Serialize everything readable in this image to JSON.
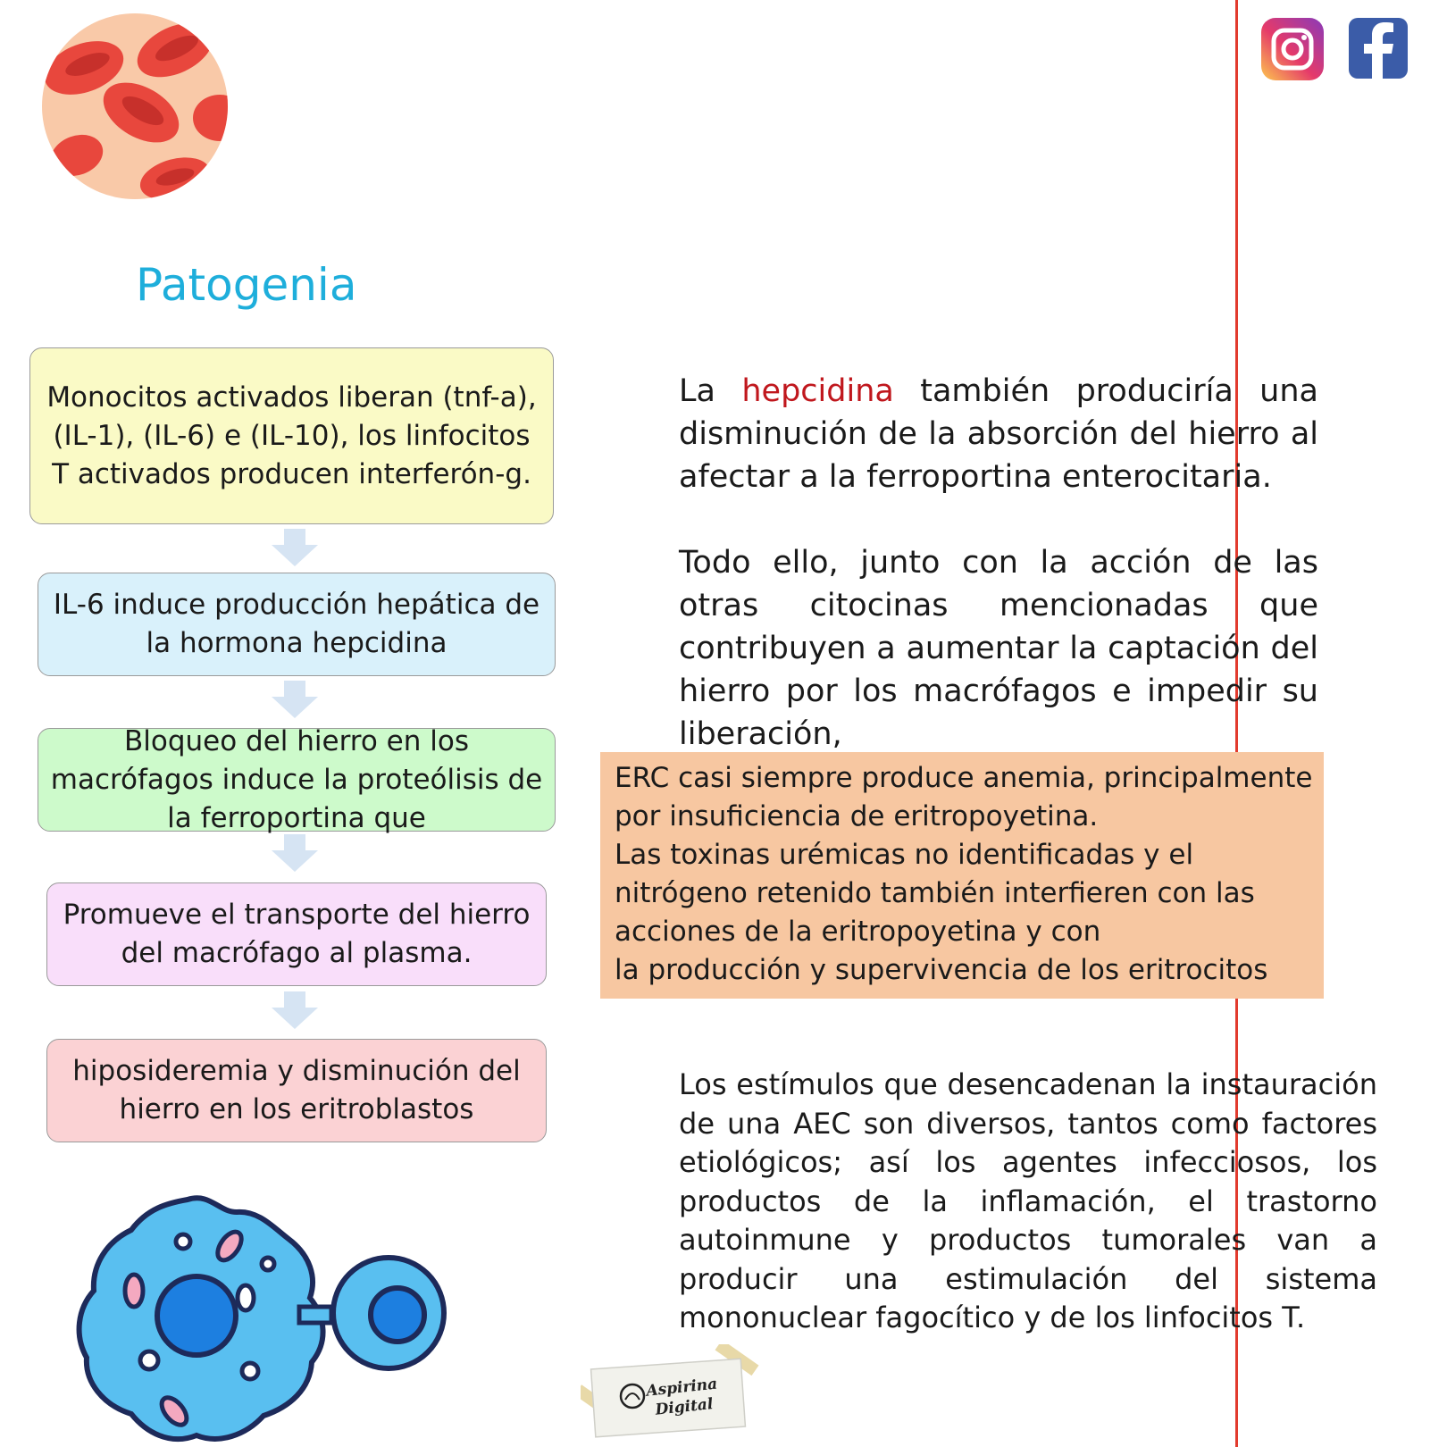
{
  "title": "Patogenia",
  "flow_boxes": [
    "Monocitos activados liberan (tnf-a), (IL-1), (IL-6) e (IL-10), los linfocitos T activados producen interferón-g.",
    "IL-6 induce  producción hepática de la hormona hepcidina",
    "Bloqueo del hierro en los macrófagos induce la proteólisis de la ferroportina que",
    "Promueve el transporte del hierro del macrófago al plasma.",
    "hiposideremia y disminución del hierro en los eritroblastos"
  ],
  "para1": {
    "prefix": "La ",
    "highlight": "hepcidina",
    "suffix": " también produciría una disminución de la absorción del hierro al afectar a la ferroportina enterocitaria."
  },
  "para2": "Todo ello, junto con la acción de las otras citocinas mencionadas que contribuyen a aumentar la captación del hierro por los macrófagos e impedir su liberación,",
  "erc_lines": [
    "ERC casi siempre produce anemia, principalmente",
    "por insuficiencia de eritropoyetina.",
    "Las toxinas urémicas no identificadas y el",
    "nitrógeno retenido también interfieren con las",
    "acciones de la eritropoyetina y con",
    "la producción y supervivencia de los eritrocitos"
  ],
  "para3": "Los estímulos que desencadenan la instauración de una AEC son diversos, tantos como factores etiológicos; así los agentes infecciosos, los productos de la inflamación, el trastorno autoinmune y productos tumorales van a producir una estimulación del sistema mononuclear fagocítico y de los linfocitos T.",
  "logo": {
    "line1": "Aspirina",
    "line2": "Digital"
  },
  "colors": {
    "title": "#1eaedb",
    "highlight": "#c0171d",
    "margin_line": "#e23b2e",
    "rule_line": "#7fdde3",
    "erc_box": "#f7c7a1"
  },
  "icons": [
    "blood-cells-icon",
    "instagram-icon",
    "facebook-icon",
    "macrophage-lymphocyte-icon"
  ]
}
